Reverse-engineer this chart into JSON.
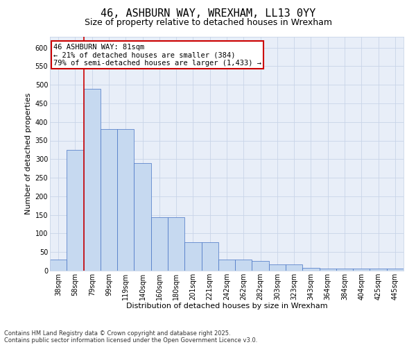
{
  "title_line1": "46, ASHBURN WAY, WREXHAM, LL13 0YY",
  "title_line2": "Size of property relative to detached houses in Wrexham",
  "xlabel": "Distribution of detached houses by size in Wrexham",
  "ylabel": "Number of detached properties",
  "categories": [
    "38sqm",
    "58sqm",
    "79sqm",
    "99sqm",
    "119sqm",
    "140sqm",
    "160sqm",
    "180sqm",
    "201sqm",
    "221sqm",
    "242sqm",
    "262sqm",
    "282sqm",
    "303sqm",
    "323sqm",
    "343sqm",
    "364sqm",
    "384sqm",
    "404sqm",
    "425sqm",
    "445sqm"
  ],
  "values": [
    30,
    325,
    490,
    380,
    380,
    290,
    143,
    143,
    76,
    76,
    30,
    30,
    27,
    16,
    16,
    8,
    5,
    5,
    5,
    5,
    5
  ],
  "bar_color": "#c6d9f0",
  "bar_edge_color": "#4472c4",
  "red_line_index": 2,
  "annotation_text": "46 ASHBURN WAY: 81sqm\n← 21% of detached houses are smaller (384)\n79% of semi-detached houses are larger (1,433) →",
  "annotation_box_facecolor": "#ffffff",
  "annotation_box_edgecolor": "#cc0000",
  "vline_color": "#cc0000",
  "ylim": [
    0,
    630
  ],
  "yticks": [
    0,
    50,
    100,
    150,
    200,
    250,
    300,
    350,
    400,
    450,
    500,
    550,
    600
  ],
  "grid_color": "#c8d4e8",
  "background_color": "#e8eef8",
  "footer_text": "Contains HM Land Registry data © Crown copyright and database right 2025.\nContains public sector information licensed under the Open Government Licence v3.0.",
  "title_fontsize": 11,
  "subtitle_fontsize": 9,
  "axis_label_fontsize": 8,
  "tick_fontsize": 7,
  "annotation_fontsize": 7.5,
  "footer_fontsize": 6
}
